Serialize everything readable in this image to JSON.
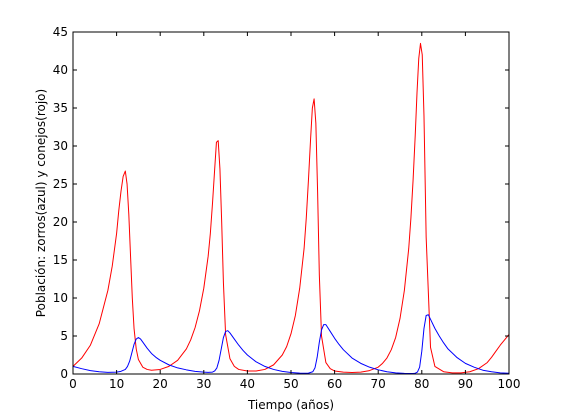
{
  "chart_data": {
    "type": "line",
    "title": "",
    "xlabel": "Tiempo (años)",
    "ylabel": "Población: zorros(azul) y conejos(rojo)",
    "xlim": [
      0,
      100
    ],
    "ylim": [
      0,
      45
    ],
    "xticks": [
      0,
      10,
      20,
      30,
      40,
      50,
      60,
      70,
      80,
      90,
      100
    ],
    "yticks": [
      0,
      5,
      10,
      15,
      20,
      25,
      30,
      35,
      40,
      45
    ],
    "grid": false,
    "legend": "none",
    "series": [
      {
        "color": "#ff0000",
        "x": [
          0,
          2,
          4,
          6,
          8,
          9,
          10,
          10.5,
          11,
          11.5,
          12,
          12.4,
          12.8,
          13.2,
          13.6,
          14,
          14.5,
          15,
          16,
          17,
          18,
          20,
          22,
          24,
          26,
          27,
          28,
          29,
          30,
          31,
          31.5,
          32,
          32.5,
          32.9,
          33.3,
          33.7,
          34.1,
          34.5,
          35,
          36,
          37,
          38,
          40,
          42,
          44,
          46,
          48,
          49,
          50,
          51,
          52,
          53,
          53.5,
          54,
          54.5,
          54.9,
          55.3,
          55.7,
          56.1,
          56.5,
          57,
          58,
          59,
          60,
          62,
          64,
          66,
          68,
          70,
          71,
          72,
          73,
          74,
          75,
          76,
          77,
          77.5,
          78,
          78.5,
          78.9,
          79.3,
          79.7,
          80.1,
          80.5,
          81,
          82,
          83,
          85,
          87,
          89,
          91,
          93,
          95,
          96,
          97,
          98,
          99,
          100
        ],
        "y": [
          1.0,
          2.1,
          3.8,
          6.6,
          11.0,
          14.2,
          18.5,
          21.5,
          24.0,
          26.0,
          26.7,
          25.0,
          21.0,
          15.5,
          10.0,
          6.0,
          3.3,
          1.9,
          0.9,
          0.6,
          0.5,
          0.6,
          1.0,
          1.8,
          3.3,
          4.5,
          6.1,
          8.3,
          11.3,
          15.5,
          18.5,
          22.5,
          27.0,
          30.5,
          30.7,
          27.0,
          20.0,
          12.0,
          5.2,
          2.0,
          1.0,
          0.6,
          0.4,
          0.4,
          0.6,
          1.2,
          2.5,
          3.6,
          5.3,
          7.7,
          11.3,
          16.5,
          20.5,
          25.5,
          31.0,
          35.0,
          36.2,
          33.0,
          24.0,
          13.0,
          5.0,
          1.5,
          0.7,
          0.4,
          0.25,
          0.2,
          0.25,
          0.45,
          0.9,
          1.4,
          2.1,
          3.2,
          4.8,
          7.3,
          11.0,
          16.5,
          20.5,
          25.5,
          31.5,
          37.0,
          41.5,
          43.5,
          42.0,
          34.0,
          18.0,
          3.5,
          1.0,
          0.3,
          0.15,
          0.15,
          0.3,
          0.7,
          1.5,
          2.2,
          3.0,
          3.8,
          4.5,
          5.2
        ]
      },
      {
        "color": "#0000ff",
        "x": [
          0,
          2,
          4,
          6,
          8,
          10,
          11,
          12,
          12.5,
          13,
          13.5,
          14,
          14.5,
          15,
          15.5,
          16,
          17,
          18,
          19,
          20,
          22,
          24,
          26,
          28,
          30,
          31,
          32,
          32.5,
          33,
          33.5,
          34,
          34.5,
          35,
          35.5,
          36,
          37,
          38,
          39,
          40,
          42,
          44,
          46,
          48,
          50,
          52,
          53,
          54,
          55,
          55.5,
          56,
          56.5,
          57,
          57.5,
          58,
          59,
          60,
          61,
          62,
          64,
          66,
          68,
          70,
          72,
          74,
          76,
          77,
          78,
          78.5,
          79,
          79.5,
          80,
          80.5,
          81,
          81.5,
          82,
          83,
          84,
          85,
          86,
          88,
          90,
          92,
          94,
          96,
          98,
          100
        ],
        "y": [
          1.0,
          0.7,
          0.45,
          0.3,
          0.22,
          0.25,
          0.35,
          0.6,
          1.0,
          1.7,
          2.8,
          3.9,
          4.6,
          4.8,
          4.6,
          4.2,
          3.4,
          2.7,
          2.2,
          1.8,
          1.2,
          0.8,
          0.55,
          0.35,
          0.25,
          0.22,
          0.25,
          0.4,
          0.8,
          1.8,
          3.3,
          4.8,
          5.6,
          5.7,
          5.4,
          4.6,
          3.8,
          3.1,
          2.5,
          1.6,
          1.0,
          0.6,
          0.35,
          0.2,
          0.12,
          0.1,
          0.12,
          0.3,
          0.8,
          2.2,
          4.2,
          5.8,
          6.5,
          6.5,
          5.6,
          4.7,
          3.9,
          3.2,
          2.1,
          1.4,
          0.9,
          0.55,
          0.3,
          0.15,
          0.08,
          0.07,
          0.07,
          0.1,
          0.25,
          0.9,
          3.0,
          6.0,
          7.7,
          7.8,
          7.2,
          6.0,
          5.0,
          4.1,
          3.3,
          2.2,
          1.4,
          0.9,
          0.5,
          0.3,
          0.15,
          0.1
        ]
      }
    ]
  }
}
